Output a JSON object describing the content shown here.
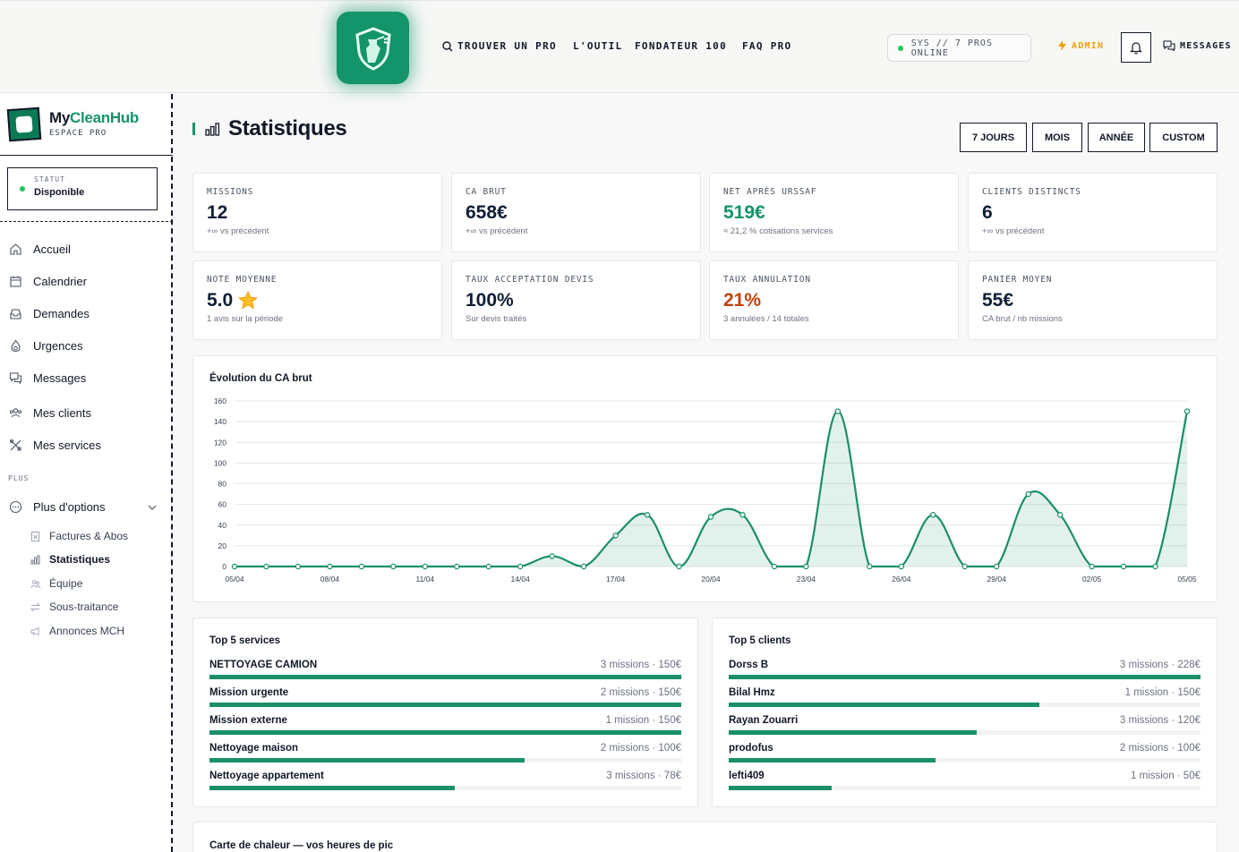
{
  "topnav": {
    "items": [
      {
        "label": "TROUVER UN PRO",
        "icon": "search-icon"
      },
      {
        "label": "L'OUTIL"
      },
      {
        "label": "FONDATEUR 100"
      },
      {
        "label": "FAQ PRO"
      }
    ],
    "status_pill": "SYS // 7 PROS ONLINE",
    "admin_label": "ADMIN",
    "messages_label": "MESSAGES"
  },
  "sidebar": {
    "brand_name_a": "My",
    "brand_name_b": "CleanHub",
    "brand_sub": "ESPACE PRO",
    "status_label": "STATUT",
    "status_value": "Disponible",
    "menu": [
      {
        "label": "Accueil",
        "icon": "home-icon"
      },
      {
        "label": "Calendrier",
        "icon": "calendar-icon"
      },
      {
        "label": "Demandes",
        "icon": "inbox-icon"
      },
      {
        "label": "Urgences",
        "icon": "flame-icon"
      },
      {
        "label": "Messages",
        "icon": "chat-icon"
      },
      {
        "label": "Mes clients",
        "icon": "users-icon"
      },
      {
        "label": "Mes services",
        "icon": "tools-icon"
      }
    ],
    "plus_label": "PLUS",
    "more_options": "Plus d'options",
    "submenu": [
      {
        "label": "Factures & Abos",
        "icon": "invoice-icon"
      },
      {
        "label": "Statistiques",
        "icon": "bar-chart-icon",
        "active": true
      },
      {
        "label": "Équipe",
        "icon": "team-icon"
      },
      {
        "label": "Sous-traitance",
        "icon": "swap-icon"
      },
      {
        "label": "Annonces MCH",
        "icon": "megaphone-icon"
      }
    ]
  },
  "page": {
    "title": "Statistiques",
    "periods": [
      "7 JOURS",
      "MOIS",
      "ANNÉE",
      "CUSTOM"
    ]
  },
  "kpis": [
    {
      "label": "MISSIONS",
      "value": "12",
      "sub": "+∞ vs précédent",
      "tone": "default"
    },
    {
      "label": "CA BRUT",
      "value": "658€",
      "sub": "+∞ vs précédent",
      "tone": "default"
    },
    {
      "label": "NET APRÈS URSSAF",
      "value": "519€",
      "sub": "≈ 21,2 % cotisations services",
      "tone": "green"
    },
    {
      "label": "CLIENTS DISTINCTS",
      "value": "6",
      "sub": "+∞ vs précédent",
      "tone": "default"
    },
    {
      "label": "NOTE MOYENNE",
      "value": "5.0",
      "sub": "1 avis sur la période",
      "tone": "default",
      "icon": "star-icon"
    },
    {
      "label": "TAUX ACCEPTATION DEVIS",
      "value": "100%",
      "sub": "Sur devis traités",
      "tone": "default"
    },
    {
      "label": "TAUX ANNULATION",
      "value": "21%",
      "sub": "3 annulées / 14 totales",
      "tone": "red"
    },
    {
      "label": "PANIER MOYEN",
      "value": "55€",
      "sub": "CA brut / nb missions",
      "tone": "default"
    }
  ],
  "chart_data": {
    "type": "area",
    "title": "Évolution du CA brut",
    "x_tick_labels": [
      "05/04",
      "08/04",
      "11/04",
      "14/04",
      "17/04",
      "20/04",
      "23/04",
      "26/04",
      "29/04",
      "02/05",
      "05/05"
    ],
    "x": [
      "05/04",
      "06/04",
      "07/04",
      "08/04",
      "09/04",
      "10/04",
      "11/04",
      "12/04",
      "13/04",
      "14/04",
      "15/04",
      "16/04",
      "17/04",
      "18/04",
      "19/04",
      "20/04",
      "21/04",
      "22/04",
      "23/04",
      "24/04",
      "25/04",
      "26/04",
      "27/04",
      "28/04",
      "29/04",
      "30/04",
      "01/05",
      "02/05",
      "03/05",
      "04/05",
      "05/05"
    ],
    "values": [
      0,
      0,
      0,
      0,
      0,
      0,
      0,
      0,
      0,
      0,
      10,
      0,
      30,
      50,
      0,
      48,
      50,
      0,
      0,
      150,
      0,
      0,
      50,
      0,
      0,
      70,
      50,
      0,
      0,
      0,
      150
    ],
    "ylim": [
      0,
      160
    ],
    "y_ticks": [
      0,
      20,
      40,
      60,
      80,
      100,
      120,
      140,
      160
    ],
    "grid": true,
    "color": "#1a8f6a"
  },
  "top_services": {
    "title": "Top 5 services",
    "items": [
      {
        "name": "NETTOYAGE CAMION",
        "meta": "3 missions · 150€",
        "share": 1.0
      },
      {
        "name": "Mission urgente",
        "meta": "2 missions · 150€",
        "share": 1.0
      },
      {
        "name": "Mission externe",
        "meta": "1 mission · 150€",
        "share": 1.0
      },
      {
        "name": "Nettoyage maison",
        "meta": "2 missions · 100€",
        "share": 0.667
      },
      {
        "name": "Nettoyage appartement",
        "meta": "3 missions · 78€",
        "share": 0.52
      }
    ]
  },
  "top_clients": {
    "title": "Top 5 clients",
    "items": [
      {
        "name": "Dorss B",
        "meta": "3 missions · 228€",
        "share": 1.0
      },
      {
        "name": "Bilal Hmz",
        "meta": "1 mission · 150€",
        "share": 0.658
      },
      {
        "name": "Rayan Zouarri",
        "meta": "3 missions · 120€",
        "share": 0.526
      },
      {
        "name": "prodofus",
        "meta": "2 missions · 100€",
        "share": 0.439
      },
      {
        "name": "lefti409",
        "meta": "1 mission · 50€",
        "share": 0.219
      }
    ]
  },
  "heatmap": {
    "title": "Carte de chaleur — vos heures de pic"
  }
}
